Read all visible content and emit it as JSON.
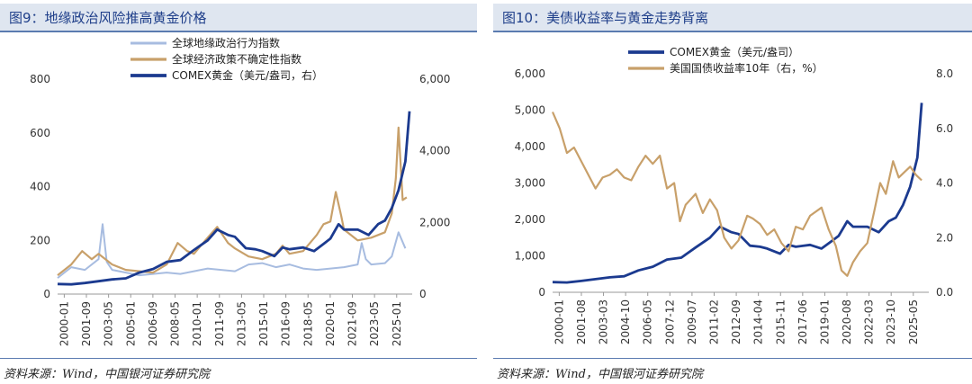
{
  "chart_data": [
    {
      "type": "line",
      "title": "图9：地缘政治风险推高黄金价格",
      "source": "资料来源：Wind，中国银河证券研究院",
      "x_ticks": [
        "2000-01",
        "2001-09",
        "2003-05",
        "2005-01",
        "2006-09",
        "2008-05",
        "2010-01",
        "2011-09",
        "2013-05",
        "2015-01",
        "2016-09",
        "2018-05",
        "2020-01",
        "2021-09",
        "2023-05",
        "2025-01"
      ],
      "y_left_ticks": [
        "0",
        "200",
        "400",
        "600",
        "800"
      ],
      "y_right_ticks": [
        "0",
        "2,000",
        "4,000",
        "6,000"
      ],
      "ylim_left": [
        0,
        800
      ],
      "ylim_right": [
        0,
        6000
      ],
      "series": [
        {
          "name": "全球地缘政治行为指数",
          "axis": "left",
          "color": "#a7bce0",
          "width": 2,
          "x": [
            2000.0,
            2001.0,
            2002.0,
            2003.0,
            2003.3,
            2003.6,
            2004.0,
            2005.0,
            2006.0,
            2007.0,
            2008.0,
            2009.0,
            2010.0,
            2011.0,
            2012.0,
            2013.0,
            2014.0,
            2015.0,
            2016.0,
            2017.0,
            2018.0,
            2019.0,
            2020.0,
            2021.0,
            2022.0,
            2022.3,
            2022.6,
            2023.0,
            2024.0,
            2024.5,
            2025.0,
            2025.5
          ],
          "values": [
            60,
            100,
            90,
            130,
            260,
            120,
            90,
            80,
            70,
            75,
            80,
            75,
            85,
            95,
            90,
            85,
            110,
            115,
            100,
            110,
            95,
            90,
            95,
            100,
            110,
            190,
            130,
            110,
            115,
            140,
            230,
            170
          ]
        },
        {
          "name": "全球经济政策不确定性指数",
          "axis": "left",
          "color": "#c8a06a",
          "width": 2.2,
          "x": [
            2000.0,
            2001.0,
            2001.8,
            2002.5,
            2003.0,
            2004.0,
            2005.0,
            2006.0,
            2007.0,
            2008.0,
            2008.8,
            2009.5,
            2010.0,
            2011.0,
            2011.7,
            2012.5,
            2013.0,
            2014.0,
            2015.0,
            2016.0,
            2016.5,
            2017.0,
            2018.0,
            2019.0,
            2019.5,
            2020.0,
            2020.4,
            2020.8,
            2021.0,
            2022.0,
            2023.0,
            2024.0,
            2024.5,
            2024.8,
            2025.0,
            2025.3,
            2025.6
          ],
          "values": [
            70,
            110,
            160,
            130,
            150,
            110,
            90,
            85,
            80,
            110,
            190,
            160,
            150,
            210,
            250,
            190,
            170,
            140,
            130,
            150,
            180,
            150,
            160,
            220,
            260,
            270,
            380,
            290,
            240,
            200,
            210,
            230,
            300,
            430,
            620,
            350,
            360
          ]
        },
        {
          "name": "COMEX黄金（美元/盎司，右）",
          "axis": "right",
          "color": "#1b3a8f",
          "width": 2.8,
          "x": [
            2000.0,
            2001.0,
            2002.0,
            2003.0,
            2004.0,
            2005.0,
            2006.0,
            2007.0,
            2008.0,
            2009.0,
            2010.0,
            2011.0,
            2011.7,
            2012.5,
            2013.0,
            2013.8,
            2014.5,
            2015.0,
            2015.9,
            2016.5,
            2017.0,
            2018.0,
            2018.8,
            2019.5,
            2020.0,
            2020.6,
            2021.0,
            2022.0,
            2022.8,
            2023.5,
            2024.0,
            2024.5,
            2025.0,
            2025.5,
            2025.8
          ],
          "values": [
            280,
            270,
            310,
            360,
            410,
            440,
            600,
            700,
            900,
            950,
            1230,
            1500,
            1800,
            1650,
            1600,
            1280,
            1250,
            1200,
            1060,
            1300,
            1250,
            1300,
            1200,
            1400,
            1550,
            1950,
            1800,
            1800,
            1650,
            1950,
            2050,
            2400,
            2900,
            3700,
            5100
          ]
        }
      ]
    },
    {
      "type": "line",
      "title": "图10：美债收益率与黄金走势背离",
      "source": "资料来源：Wind，中国银河证券研究院",
      "x_ticks": [
        "2000-01",
        "2001-08",
        "2003-03",
        "2004-10",
        "2006-05",
        "2007-12",
        "2009-07",
        "2011-02",
        "2012-09",
        "2014-04",
        "2015-11",
        "2017-06",
        "2019-01",
        "2020-08",
        "2022-03",
        "2023-10",
        "2025-05"
      ],
      "y_left_ticks": [
        "0",
        "1,000",
        "2,000",
        "3,000",
        "4,000",
        "5,000",
        "6,000"
      ],
      "y_right_ticks": [
        "0.0",
        "2.0",
        "4.0",
        "6.0",
        "8.0"
      ],
      "ylim_left": [
        0,
        6000
      ],
      "ylim_right": [
        0,
        8
      ],
      "series": [
        {
          "name": "COMEX黄金（美元/盎司）",
          "axis": "left",
          "color": "#1b3a8f",
          "width": 2.8,
          "x": [
            2000.0,
            2001.0,
            2002.0,
            2003.0,
            2004.0,
            2005.0,
            2006.0,
            2007.0,
            2008.0,
            2009.0,
            2010.0,
            2011.0,
            2011.7,
            2012.5,
            2013.0,
            2013.8,
            2014.5,
            2015.0,
            2015.9,
            2016.5,
            2017.0,
            2018.0,
            2018.8,
            2019.5,
            2020.0,
            2020.6,
            2021.0,
            2022.0,
            2022.8,
            2023.5,
            2024.0,
            2024.5,
            2025.0,
            2025.5,
            2025.8
          ],
          "values": [
            280,
            270,
            310,
            360,
            410,
            440,
            600,
            700,
            900,
            950,
            1230,
            1500,
            1800,
            1650,
            1600,
            1280,
            1250,
            1200,
            1060,
            1300,
            1250,
            1300,
            1200,
            1400,
            1550,
            1950,
            1800,
            1800,
            1650,
            1950,
            2050,
            2400,
            2900,
            3700,
            5200
          ]
        },
        {
          "name": "美国国债收益率10年（右，%）",
          "axis": "right",
          "color": "#c8a06a",
          "width": 2.2,
          "x": [
            2000.0,
            2000.5,
            2001.0,
            2001.5,
            2002.0,
            2002.5,
            2003.0,
            2003.5,
            2004.0,
            2004.5,
            2005.0,
            2005.5,
            2006.0,
            2006.5,
            2007.0,
            2007.5,
            2008.0,
            2008.5,
            2008.9,
            2009.3,
            2010.0,
            2010.5,
            2011.0,
            2011.5,
            2012.0,
            2012.5,
            2013.0,
            2013.6,
            2014.0,
            2014.5,
            2015.0,
            2015.5,
            2016.0,
            2016.5,
            2017.0,
            2017.5,
            2018.0,
            2018.8,
            2019.3,
            2019.8,
            2020.2,
            2020.6,
            2021.0,
            2021.5,
            2022.0,
            2022.5,
            2022.9,
            2023.3,
            2023.8,
            2024.2,
            2024.6,
            2025.0,
            2025.4,
            2025.8
          ],
          "values": [
            6.6,
            6.0,
            5.1,
            5.3,
            4.8,
            4.3,
            3.8,
            4.2,
            4.3,
            4.5,
            4.2,
            4.1,
            4.6,
            5.0,
            4.7,
            5.0,
            3.8,
            4.0,
            2.6,
            3.2,
            3.6,
            2.9,
            3.4,
            3.0,
            2.0,
            1.6,
            1.9,
            2.8,
            2.7,
            2.5,
            2.1,
            2.3,
            1.8,
            1.5,
            2.4,
            2.3,
            2.8,
            3.1,
            2.3,
            1.7,
            0.8,
            0.6,
            1.1,
            1.5,
            1.8,
            3.0,
            4.0,
            3.6,
            4.8,
            4.2,
            4.4,
            4.6,
            4.3,
            4.1
          ]
        }
      ]
    }
  ]
}
